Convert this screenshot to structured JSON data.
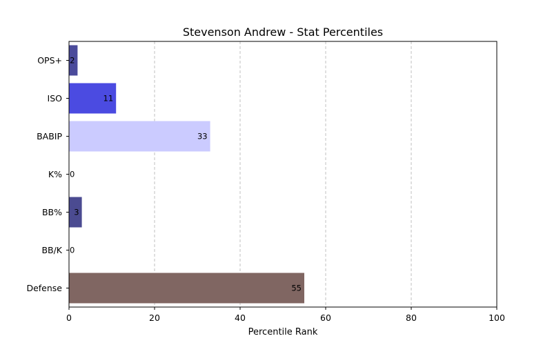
{
  "chart_data": {
    "type": "bar",
    "orientation": "horizontal",
    "title": "Stevenson Andrew - Stat Percentiles",
    "xlabel": "Percentile Rank",
    "ylabel": "",
    "xlim": [
      0,
      100
    ],
    "xticks": [
      "0",
      "20",
      "40",
      "60",
      "80",
      "100"
    ],
    "grid": "vertical dashed",
    "categories": [
      "OPS+",
      "ISO",
      "BABIP",
      "K%",
      "BB%",
      "BB/K",
      "Defense"
    ],
    "values": [
      2,
      11,
      33,
      0,
      3,
      0,
      55
    ],
    "value_labels": [
      "2",
      "11",
      "33",
      "0",
      "3",
      "0",
      "55"
    ],
    "colors": [
      "#4b4b9b",
      "#4b4be1",
      "#cbcbff",
      "#cbcbff",
      "#4b4b91",
      "#8b8bcb",
      "#806662"
    ]
  }
}
